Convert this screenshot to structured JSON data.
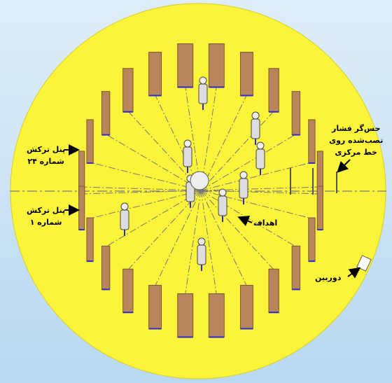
{
  "labels": {
    "panel_24": {
      "lines": [
        "پنل ترکش",
        "شماره ۲۴"
      ]
    },
    "panel_1": {
      "lines": [
        "پنل ترکش",
        "شماره ۱"
      ]
    },
    "sensor": {
      "lines": [
        "حس‌گر فشار",
        "تصب‌شده روی",
        "خط مرکزی"
      ]
    },
    "targets": {
      "lines": [
        "اهداف"
      ]
    },
    "camera": {
      "lines": [
        "دوربین"
      ]
    }
  }
}
